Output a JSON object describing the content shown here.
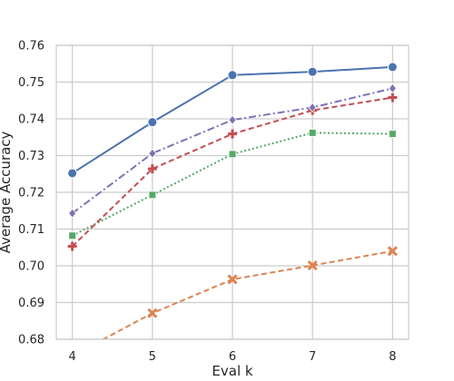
{
  "chart_data": {
    "type": "line",
    "xlabel": "Eval k",
    "ylabel": "Average Accuracy",
    "x": [
      4,
      5,
      6,
      7,
      8
    ],
    "xticks": [
      "4",
      "5",
      "6",
      "7",
      "8"
    ],
    "xlim": [
      3.8,
      8.2
    ],
    "ylim": [
      0.68,
      0.76
    ],
    "yticks": [
      "0.68",
      "0.69",
      "0.70",
      "0.71",
      "0.72",
      "0.73",
      "0.74",
      "0.75",
      "0.76"
    ],
    "grid": true,
    "legend": false,
    "series": [
      {
        "values": [
          0.7252,
          0.7391,
          0.7519,
          0.7528,
          0.7541
        ],
        "color": "#4c72b0",
        "linestyle": "solid",
        "marker": "circle"
      },
      {
        "values": [
          0.6755,
          0.6871,
          0.6963,
          0.7001,
          0.704
        ],
        "color": "#dd8452",
        "linestyle": "dashed",
        "marker": "x"
      },
      {
        "values": [
          0.7082,
          0.7193,
          0.7304,
          0.7362,
          0.7359
        ],
        "color": "#55a868",
        "linestyle": "dotted",
        "marker": "square"
      },
      {
        "values": [
          0.7053,
          0.7264,
          0.7359,
          0.7423,
          0.7458
        ],
        "color": "#c44e52",
        "linestyle": "dashed",
        "marker": "plus"
      },
      {
        "values": [
          0.7143,
          0.7306,
          0.7397,
          0.7431,
          0.7483
        ],
        "color": "#8172b3",
        "linestyle": "dashdot",
        "marker": "diamond"
      }
    ]
  }
}
